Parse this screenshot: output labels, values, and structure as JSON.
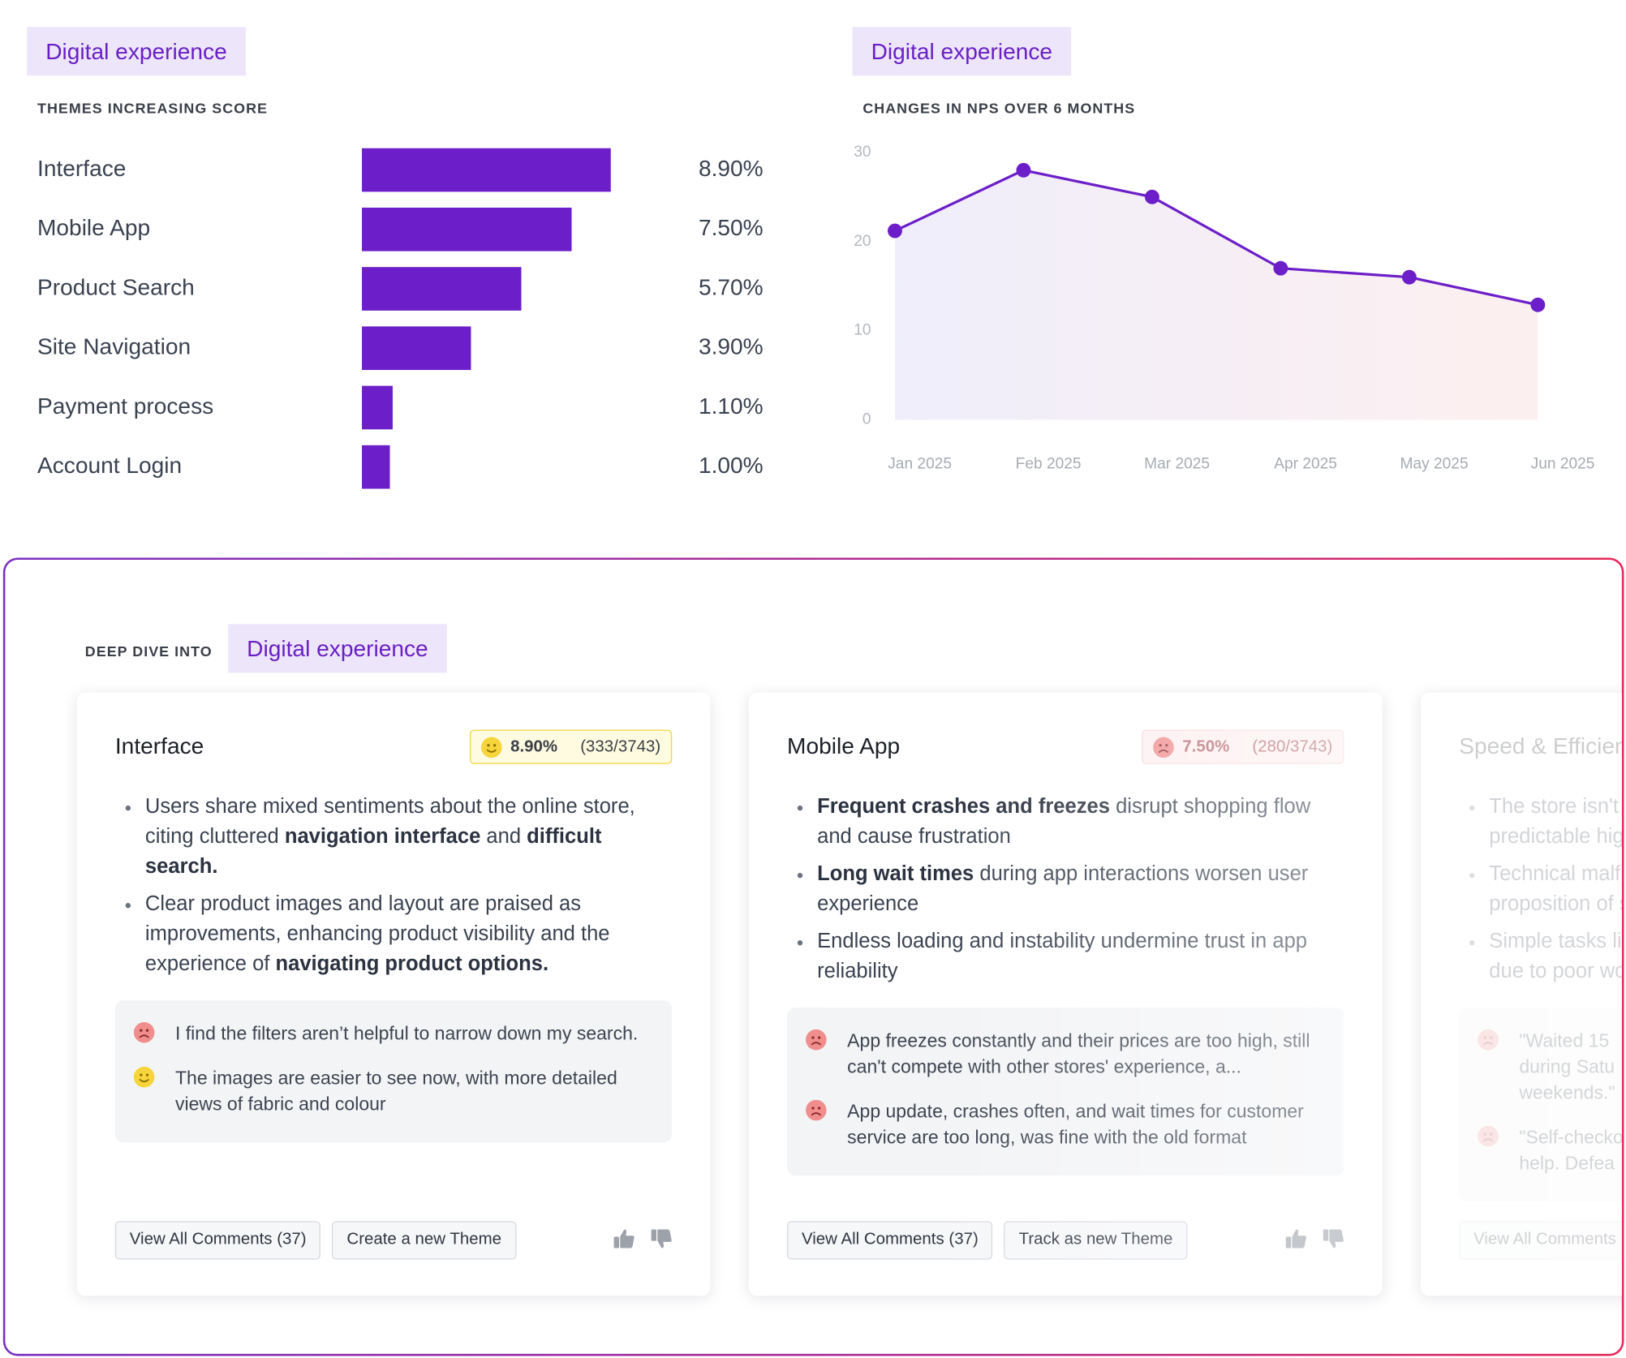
{
  "chart_data": [
    {
      "type": "bar",
      "tag": "Digital experience",
      "title": "THEMES INCREASING SCORE",
      "categories": [
        "Interface",
        "Mobile App",
        "Product Search",
        "Site Navigation",
        "Payment process",
        "Account Login"
      ],
      "values": [
        8.9,
        7.5,
        5.7,
        3.9,
        1.1,
        1.0
      ],
      "value_labels": [
        "8.90%",
        "7.50%",
        "5.70%",
        "3.90%",
        "1.10%",
        "1.00%"
      ],
      "color": "#6c1ec9"
    },
    {
      "type": "line",
      "tag": "Digital experience",
      "title": "CHANGES IN NPS OVER 6 MONTHS",
      "categories": [
        "Jan 2025",
        "Feb 2025",
        "Mar 2025",
        "Apr 2025",
        "May 2025",
        "Jun 2025"
      ],
      "values": [
        21.2,
        28,
        25,
        17,
        16,
        12.9
      ],
      "color": "#6c1ec9",
      "ylim": [
        0,
        30
      ],
      "yticks": [
        0,
        10,
        20,
        30
      ]
    }
  ],
  "deep_dive": {
    "label": "DEEP DIVE INTO",
    "tag": "Digital experience",
    "cards": [
      {
        "title": "Interface",
        "sentiment": "positive",
        "score": "8.90%",
        "count": "(333/3743)",
        "bullets": [
          [
            {
              "text": "Users share mixed sentiments about the online store, citing cluttered "
            },
            {
              "text": "navigation interface",
              "bold": true
            },
            {
              "text": " and "
            },
            {
              "text": "difficult search.",
              "bold": true
            }
          ],
          [
            {
              "text": "Clear product images and layout are praised as improvements, enhancing product visibility and the experience of "
            },
            {
              "text": "navigating product options.",
              "bold": true
            }
          ]
        ],
        "quotes": [
          {
            "sentiment": "negative",
            "text": "I find the filters aren’t helpful to narrow down my search."
          },
          {
            "sentiment": "positive",
            "text": "The images are easier to see now, with more detailed views of fabric and colour"
          }
        ],
        "buttons": [
          "View All Comments (37)",
          "Create a new Theme"
        ]
      },
      {
        "title": "Mobile App",
        "sentiment": "negative",
        "score": "7.50%",
        "count": "(280/3743)",
        "bullets": [
          [
            {
              "text": "Frequent crashes and freezes",
              "bold": true
            },
            {
              "text": " disrupt shopping flow and cause frustration"
            }
          ],
          [
            {
              "text": "Long wait times",
              "bold": true
            },
            {
              "text": " during app interactions worsen user experience"
            }
          ],
          [
            {
              "text": "Endless loading and instability undermine trust in app reliability"
            }
          ]
        ],
        "quotes": [
          {
            "sentiment": "negative",
            "text": "App freezes constantly and their prices are too high, still can't compete with other stores' experience, a..."
          },
          {
            "sentiment": "negative",
            "text": "App update, crashes often, and wait times for customer service are too long, was fine with the old format"
          }
        ],
        "buttons": [
          "View All Comments (37)",
          "Track as new Theme"
        ]
      },
      {
        "title": "Speed & Efficien",
        "sentiment": "negative",
        "bullets": [
          [
            {
              "text": "The store isn't a\npredictable hig"
            }
          ],
          [
            {
              "text": "Technical malfu\nproposition of s"
            }
          ],
          [
            {
              "text": "Simple tasks lik\ndue to poor wo"
            }
          ]
        ],
        "quotes": [
          {
            "sentiment": "negative",
            "text": "\"Waited 15\nduring Satu\nweekends.\""
          },
          {
            "sentiment": "negative",
            "text": "\"Self-checko\nhelp. Defea"
          }
        ],
        "buttons": [
          "View All Comments"
        ]
      }
    ]
  }
}
